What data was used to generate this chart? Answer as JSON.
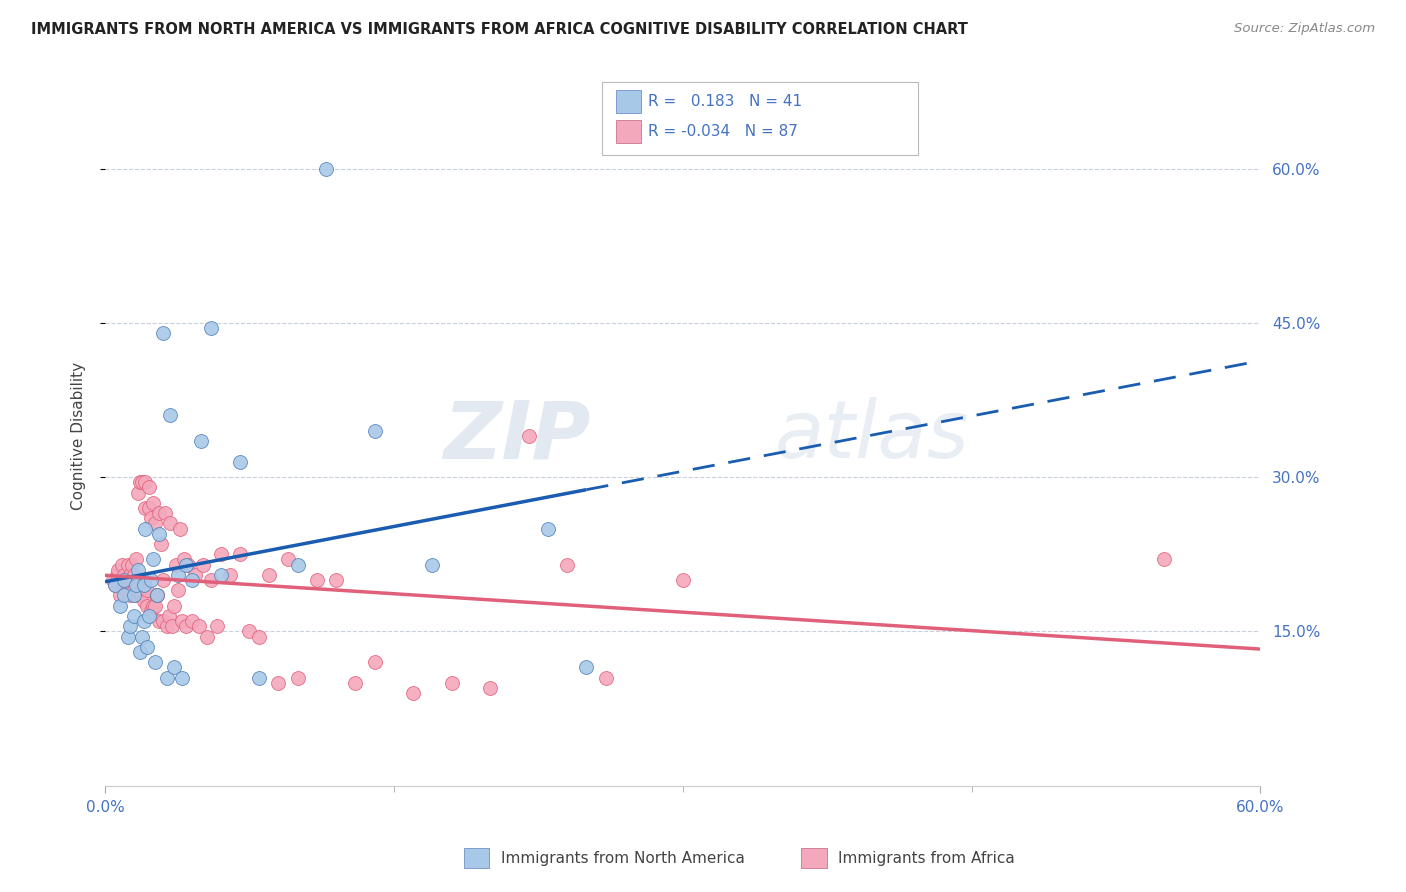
{
  "title": "IMMIGRANTS FROM NORTH AMERICA VS IMMIGRANTS FROM AFRICA COGNITIVE DISABILITY CORRELATION CHART",
  "source": "Source: ZipAtlas.com",
  "ylabel": "Cognitive Disability",
  "right_ytick_vals": [
    0.15,
    0.3,
    0.45,
    0.6
  ],
  "right_ytick_labels": [
    "15.0%",
    "30.0%",
    "45.0%",
    "60.0%"
  ],
  "xlim": [
    0.0,
    0.6
  ],
  "ylim": [
    0.0,
    0.68
  ],
  "legend_label1": "Immigrants from North America",
  "legend_label2": "Immigrants from Africa",
  "R1": 0.183,
  "N1": 41,
  "R2": -0.034,
  "N2": 87,
  "watermark_zip": "ZIP",
  "watermark_atlas": "atlas",
  "color_blue": "#a8c8e8",
  "color_pink": "#f4a8bc",
  "color_line_blue": "#1a5cb0",
  "color_line_pink": "#e0607a",
  "north_america_x": [
    0.005,
    0.008,
    0.01,
    0.01,
    0.012,
    0.013,
    0.015,
    0.015,
    0.016,
    0.017,
    0.018,
    0.019,
    0.02,
    0.02,
    0.021,
    0.022,
    0.023,
    0.024,
    0.025,
    0.026,
    0.027,
    0.028,
    0.03,
    0.032,
    0.034,
    0.036,
    0.038,
    0.04,
    0.042,
    0.045,
    0.05,
    0.055,
    0.06,
    0.07,
    0.08,
    0.1,
    0.115,
    0.14,
    0.17,
    0.23,
    0.25
  ],
  "north_america_y": [
    0.195,
    0.175,
    0.185,
    0.2,
    0.145,
    0.155,
    0.165,
    0.185,
    0.195,
    0.21,
    0.13,
    0.145,
    0.16,
    0.195,
    0.25,
    0.135,
    0.165,
    0.2,
    0.22,
    0.12,
    0.185,
    0.245,
    0.44,
    0.105,
    0.36,
    0.115,
    0.205,
    0.105,
    0.215,
    0.2,
    0.335,
    0.445,
    0.205,
    0.315,
    0.105,
    0.215,
    0.6,
    0.345,
    0.215,
    0.25,
    0.115
  ],
  "africa_x": [
    0.004,
    0.005,
    0.006,
    0.007,
    0.008,
    0.009,
    0.01,
    0.01,
    0.011,
    0.012,
    0.012,
    0.013,
    0.013,
    0.014,
    0.014,
    0.015,
    0.015,
    0.016,
    0.016,
    0.017,
    0.017,
    0.018,
    0.018,
    0.019,
    0.019,
    0.02,
    0.02,
    0.021,
    0.021,
    0.022,
    0.022,
    0.023,
    0.023,
    0.024,
    0.024,
    0.025,
    0.025,
    0.026,
    0.026,
    0.027,
    0.027,
    0.028,
    0.028,
    0.029,
    0.03,
    0.03,
    0.031,
    0.032,
    0.033,
    0.034,
    0.035,
    0.036,
    0.037,
    0.038,
    0.039,
    0.04,
    0.041,
    0.042,
    0.043,
    0.045,
    0.047,
    0.049,
    0.051,
    0.053,
    0.055,
    0.058,
    0.06,
    0.065,
    0.07,
    0.075,
    0.08,
    0.085,
    0.09,
    0.095,
    0.1,
    0.11,
    0.12,
    0.13,
    0.14,
    0.16,
    0.18,
    0.2,
    0.22,
    0.24,
    0.26,
    0.3,
    0.55
  ],
  "africa_y": [
    0.2,
    0.195,
    0.205,
    0.21,
    0.185,
    0.215,
    0.195,
    0.205,
    0.19,
    0.2,
    0.215,
    0.185,
    0.205,
    0.215,
    0.195,
    0.19,
    0.205,
    0.185,
    0.22,
    0.195,
    0.285,
    0.185,
    0.295,
    0.185,
    0.295,
    0.18,
    0.2,
    0.27,
    0.295,
    0.175,
    0.19,
    0.27,
    0.29,
    0.17,
    0.26,
    0.175,
    0.275,
    0.175,
    0.255,
    0.185,
    0.185,
    0.265,
    0.16,
    0.235,
    0.16,
    0.2,
    0.265,
    0.155,
    0.165,
    0.255,
    0.155,
    0.175,
    0.215,
    0.19,
    0.25,
    0.16,
    0.22,
    0.155,
    0.215,
    0.16,
    0.205,
    0.155,
    0.215,
    0.145,
    0.2,
    0.155,
    0.225,
    0.205,
    0.225,
    0.15,
    0.145,
    0.205,
    0.1,
    0.22,
    0.105,
    0.2,
    0.2,
    0.1,
    0.12,
    0.09,
    0.1,
    0.095,
    0.34,
    0.215,
    0.105,
    0.2,
    0.22
  ]
}
